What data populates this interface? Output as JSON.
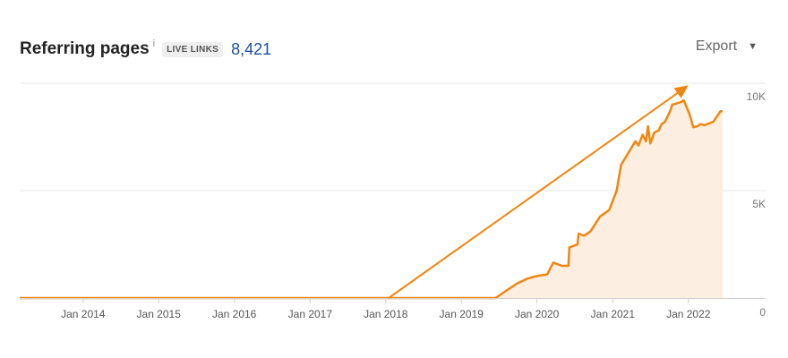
{
  "header": {
    "title": "Referring pages",
    "info_symbol": "i",
    "badge": "LIVE LINKS",
    "count": "8,421"
  },
  "export": {
    "label": "Export",
    "icon": "chevron-down-icon"
  },
  "colors": {
    "line": "#f0860f",
    "fill": "#fcefe2",
    "grid": "#e6e6e6",
    "count": "#1a4e9b"
  },
  "chart_data": {
    "type": "area",
    "title": "Referring pages",
    "x_tick_labels": [
      "Jan 2014",
      "Jan 2015",
      "Jan 2016",
      "Jan 2017",
      "Jan 2018",
      "Jan 2019",
      "Jan 2020",
      "Jan 2021",
      "Jan 2022"
    ],
    "y_tick_labels": [
      "10K",
      "5K",
      "0"
    ],
    "xlim": [
      "2013-03-01",
      "2022-09-01"
    ],
    "ylim": [
      0,
      10000
    ],
    "grid": true,
    "series": [
      {
        "x": [
          "2013-03-01",
          "2019-06-15",
          "2019-08-15",
          "2019-10-01",
          "2019-11-15",
          "2019-12-20",
          "2020-01-15",
          "2020-02-20",
          "2020-03-20",
          "2020-05-01",
          "2020-06-01",
          "2020-06-05",
          "2020-07-15",
          "2020-07-20",
          "2020-08-15",
          "2020-09-15",
          "2020-11-01",
          "2020-12-15",
          "2021-01-20",
          "2021-02-10",
          "2021-03-01",
          "2021-04-01",
          "2021-04-20",
          "2021-05-05",
          "2021-05-25",
          "2021-06-10",
          "2021-06-20",
          "2021-07-01",
          "2021-07-20",
          "2021-08-10",
          "2021-08-25",
          "2021-09-10",
          "2021-10-05",
          "2021-10-15",
          "2021-11-20",
          "2021-12-10",
          "2022-01-05",
          "2022-01-25",
          "2022-02-15",
          "2022-03-01",
          "2022-03-20",
          "2022-05-01",
          "2022-06-05",
          "2022-06-15"
        ],
        "y": [
          0,
          0,
          400,
          700,
          900,
          1000,
          1050,
          1100,
          1650,
          1500,
          1500,
          2350,
          2500,
          3000,
          2900,
          3100,
          3800,
          4100,
          5000,
          6200,
          6500,
          7000,
          7300,
          7100,
          7600,
          7300,
          8000,
          7200,
          7700,
          7800,
          8100,
          8200,
          8700,
          9000,
          9100,
          9200,
          8600,
          7950,
          8000,
          8100,
          8050,
          8200,
          8700,
          8700
        ]
      }
    ],
    "annotation": {
      "type": "arrow",
      "from": [
        "2018-01-15",
        0
      ],
      "to": [
        "2022-01-01",
        9900
      ]
    }
  }
}
